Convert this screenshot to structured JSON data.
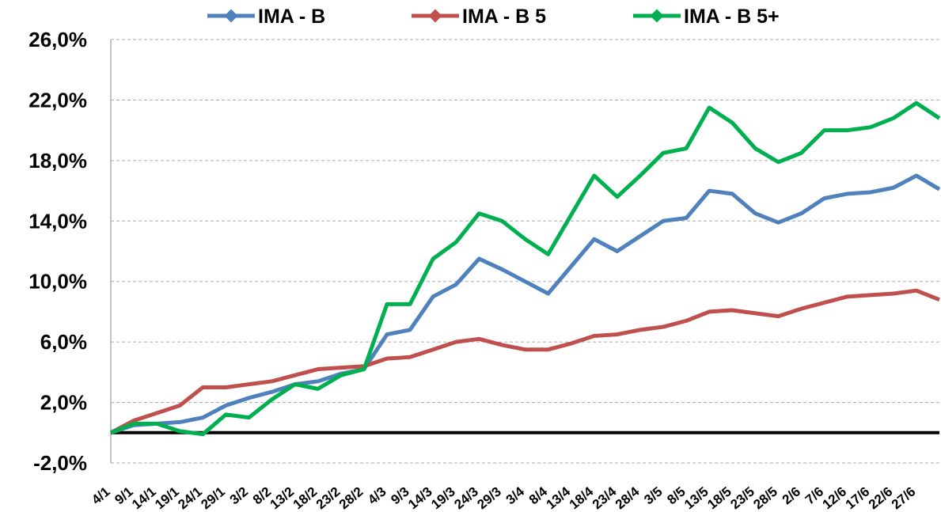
{
  "chart_data": {
    "type": "line",
    "categories": [
      "4/1",
      "9/1",
      "14/1",
      "19/1",
      "24/1",
      "29/1",
      "3/2",
      "8/2",
      "13/2",
      "18/2",
      "23/2",
      "28/2",
      "4/3",
      "9/3",
      "14/3",
      "19/3",
      "24/3",
      "29/3",
      "3/4",
      "8/4",
      "13/4",
      "18/4",
      "23/4",
      "28/4",
      "3/5",
      "8/5",
      "13/5",
      "18/5",
      "23/5",
      "28/5",
      "2/6",
      "7/6",
      "12/6",
      "17/6",
      "22/6",
      "27/6",
      null
    ],
    "series": [
      {
        "name": "IMA - B",
        "color": "#4f81bd",
        "values": [
          0,
          0.5,
          0.6,
          0.7,
          1.0,
          1.8,
          2.3,
          2.7,
          3.2,
          3.4,
          3.9,
          4.2,
          6.5,
          6.8,
          9.0,
          9.8,
          11.5,
          10.8,
          10.0,
          9.2,
          11.0,
          12.8,
          12.0,
          13.0,
          14.0,
          14.2,
          16.0,
          15.8,
          14.5,
          13.9,
          14.5,
          15.5,
          15.8,
          15.9,
          16.2,
          17.0,
          16.1
        ]
      },
      {
        "name": "IMA - B 5",
        "color": "#c0504d",
        "values": [
          0,
          0.8,
          1.3,
          1.8,
          3.0,
          3.0,
          3.2,
          3.4,
          3.8,
          4.2,
          4.3,
          4.4,
          4.9,
          5.0,
          5.5,
          6.0,
          6.2,
          5.8,
          5.5,
          5.5,
          5.9,
          6.4,
          6.5,
          6.8,
          7.0,
          7.4,
          8.0,
          8.1,
          7.9,
          7.7,
          8.2,
          8.6,
          9.0,
          9.1,
          9.2,
          9.4,
          8.8
        ]
      },
      {
        "name": "IMA - B 5+",
        "color": "#00b050",
        "values": [
          0,
          0.6,
          0.6,
          0.1,
          -0.1,
          1.2,
          1.0,
          2.2,
          3.2,
          2.9,
          3.8,
          4.2,
          8.5,
          8.5,
          11.5,
          12.6,
          14.5,
          14.0,
          12.8,
          11.8,
          14.4,
          17.0,
          15.6,
          17.0,
          18.5,
          18.8,
          21.5,
          20.5,
          18.8,
          17.9,
          18.5,
          20.0,
          20.0,
          20.2,
          20.8,
          21.8,
          20.8
        ]
      }
    ],
    "ylim": [
      -2,
      26
    ],
    "yticks": [
      {
        "value": -2,
        "label": "-2,0%"
      },
      {
        "value": 2,
        "label": "2,0%"
      },
      {
        "value": 6,
        "label": "6,0%"
      },
      {
        "value": 10,
        "label": "10,0%"
      },
      {
        "value": 14,
        "label": "14,0%"
      },
      {
        "value": 18,
        "label": "18,0%"
      },
      {
        "value": 22,
        "label": "22,0%"
      },
      {
        "value": 26,
        "label": "26,0%"
      }
    ],
    "grid": true,
    "zero_line": true,
    "legend": "top"
  }
}
